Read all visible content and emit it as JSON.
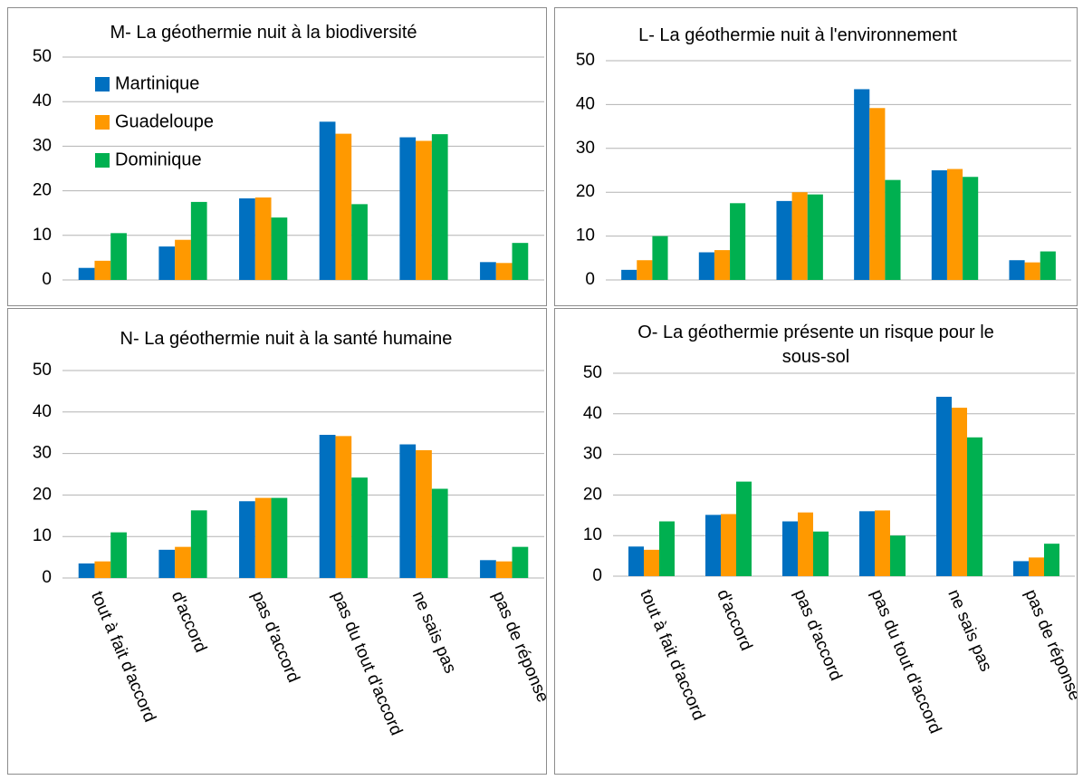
{
  "chart_data": [
    {
      "type": "bar",
      "title": "M- La géothermie nuit à la biodiversité",
      "categories": [
        null,
        null,
        null,
        null,
        null,
        null
      ],
      "series": [
        {
          "name": "Martinique",
          "color": "#0070c0",
          "values": [
            2.7,
            7.5,
            18.3,
            35.5,
            32,
            4
          ]
        },
        {
          "name": "Guadeloupe",
          "color": "#ff9900",
          "values": [
            4.3,
            9,
            18.5,
            32.8,
            31.2,
            3.8
          ]
        },
        {
          "name": "Dominique",
          "color": "#00b050",
          "values": [
            10.5,
            17.5,
            14,
            17,
            32.7,
            8.3
          ]
        }
      ],
      "ylim": [
        0,
        50
      ],
      "yticks": [
        0,
        10,
        20,
        30,
        40,
        50
      ],
      "grid": true,
      "legend": "upper left"
    },
    {
      "type": "bar",
      "title": "L- La géothermie nuit à l'environnement",
      "categories": [
        null,
        null,
        null,
        null,
        null,
        null
      ],
      "series": [
        {
          "color": "#0070c0",
          "values": [
            2.3,
            6.3,
            18,
            43.5,
            25,
            4.5
          ]
        },
        {
          "color": "#ff9900",
          "values": [
            4.5,
            6.8,
            20,
            39.2,
            25.3,
            4
          ]
        },
        {
          "color": "#00b050",
          "values": [
            10,
            17.5,
            19.5,
            22.8,
            23.5,
            6.5
          ]
        }
      ],
      "ylim": [
        0,
        50
      ],
      "yticks": [
        0,
        10,
        20,
        30,
        40,
        50
      ],
      "grid": true
    },
    {
      "type": "bar",
      "title": "N- La géothermie nuit à la santé humaine",
      "categories": [
        "tout à fait d'accord",
        "d'accord",
        "pas d'accord",
        "pas du tout d'accord",
        "ne sais pas",
        "pas de réponse"
      ],
      "series": [
        {
          "color": "#0070c0",
          "values": [
            3.5,
            6.8,
            18.5,
            34.5,
            32.2,
            4.3
          ]
        },
        {
          "color": "#ff9900",
          "values": [
            4,
            7.5,
            19.3,
            34.2,
            30.8,
            4
          ]
        },
        {
          "color": "#00b050",
          "values": [
            11,
            16.3,
            19.3,
            24.2,
            21.5,
            7.5
          ]
        }
      ],
      "ylim": [
        0,
        50
      ],
      "yticks": [
        0,
        10,
        20,
        30,
        40,
        50
      ],
      "grid": true
    },
    {
      "type": "bar",
      "title": "O- La géothermie présente un risque pour le sous-sol",
      "categories": [
        "tout à fait d'accord",
        "d'accord",
        "pas d'accord",
        "pas du tout d'accord",
        "ne sais pas",
        "pas de réponse"
      ],
      "series": [
        {
          "color": "#0070c0",
          "values": [
            7.3,
            15.1,
            13.5,
            16,
            44.2,
            3.7
          ]
        },
        {
          "color": "#ff9900",
          "values": [
            6.5,
            15.3,
            15.7,
            16.2,
            41.5,
            4.6
          ]
        },
        {
          "color": "#00b050",
          "values": [
            13.5,
            23.3,
            11,
            10,
            34.2,
            8
          ]
        }
      ],
      "ylim": [
        0,
        50
      ],
      "yticks": [
        0,
        10,
        20,
        30,
        40,
        50
      ],
      "grid": true
    }
  ]
}
